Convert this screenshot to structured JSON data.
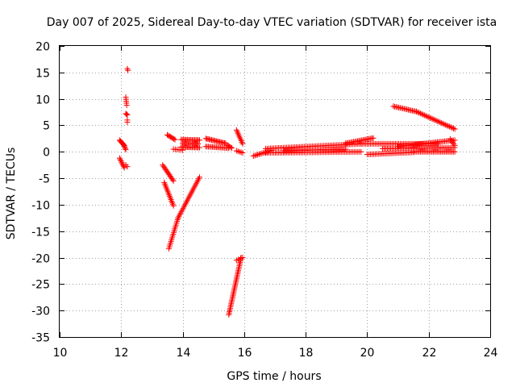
{
  "chart_data": {
    "type": "scatter",
    "title": "Day 007 of 2025, Sidereal Day-to-day VTEC variation (SDTVAR) for receiver ista",
    "xlabel": "GPS time / hours",
    "ylabel": "SDTVAR / TECUs",
    "xlim": [
      10,
      24
    ],
    "ylim": [
      -35,
      20
    ],
    "xticks": [
      10,
      12,
      14,
      16,
      18,
      20,
      22,
      24
    ],
    "yticks": [
      -35,
      -30,
      -25,
      -20,
      -15,
      -10,
      -5,
      0,
      5,
      10,
      15,
      20
    ],
    "grid": true,
    "marker": "+",
    "color": "#ff0000",
    "segments": [
      {
        "name": "a",
        "x0": 11.95,
        "y0": 2.2,
        "x1": 12.1,
        "y1": 1.2,
        "n": 8
      },
      {
        "name": "b",
        "x0": 12.1,
        "y0": 1.1,
        "x1": 12.15,
        "y1": 0.4,
        "n": 4
      },
      {
        "name": "c",
        "x0": 11.95,
        "y0": -1.2,
        "x1": 12.1,
        "y1": -3.0,
        "n": 8
      },
      {
        "name": "d",
        "x0": 12.15,
        "y0": -2.5,
        "x1": 12.2,
        "y1": -2.8,
        "n": 2
      },
      {
        "name": "e",
        "x0": 12.15,
        "y0": 10.3,
        "x1": 12.18,
        "y1": 8.8,
        "n": 5
      },
      {
        "name": "f",
        "x0": 12.15,
        "y0": 7.2,
        "x1": 12.2,
        "y1": 7.0,
        "n": 3
      },
      {
        "name": "g",
        "x0": 12.2,
        "y0": 15.7,
        "x1": 12.22,
        "y1": 15.4,
        "n": 2
      },
      {
        "name": "h",
        "x0": 12.2,
        "y0": 6.0,
        "x1": 12.2,
        "y1": 5.6,
        "n": 2
      },
      {
        "name": "i",
        "x0": 13.35,
        "y0": -2.5,
        "x1": 13.7,
        "y1": -5.5,
        "n": 14
      },
      {
        "name": "j",
        "x0": 13.4,
        "y0": -5.8,
        "x1": 13.7,
        "y1": -10.2,
        "n": 16
      },
      {
        "name": "k",
        "x0": 13.55,
        "y0": -18.3,
        "x1": 13.85,
        "y1": -12.5,
        "n": 18
      },
      {
        "name": "l",
        "x0": 13.85,
        "y0": -12.5,
        "x1": 14.55,
        "y1": -4.8,
        "n": 26
      },
      {
        "name": "m",
        "x0": 13.5,
        "y0": 3.2,
        "x1": 13.75,
        "y1": 2.3,
        "n": 8
      },
      {
        "name": "n",
        "x0": 13.7,
        "y0": 0.5,
        "x1": 14.0,
        "y1": 0.3,
        "n": 6
      },
      {
        "name": "o",
        "x0": 13.95,
        "y0": 2.3,
        "x1": 14.55,
        "y1": 2.2,
        "n": 16
      },
      {
        "name": "p",
        "x0": 13.95,
        "y0": 0.9,
        "x1": 14.55,
        "y1": 0.8,
        "n": 16
      },
      {
        "name": "q",
        "x0": 14.0,
        "y0": 1.6,
        "x1": 14.5,
        "y1": 1.5,
        "n": 12
      },
      {
        "name": "r",
        "x0": 14.75,
        "y0": 2.5,
        "x1": 15.4,
        "y1": 1.6,
        "n": 18
      },
      {
        "name": "s",
        "x0": 14.75,
        "y0": 1.0,
        "x1": 15.5,
        "y1": 0.7,
        "n": 18
      },
      {
        "name": "t",
        "x0": 15.45,
        "y0": 1.3,
        "x1": 15.6,
        "y1": 0.7,
        "n": 5
      },
      {
        "name": "u",
        "x0": 15.5,
        "y0": -30.8,
        "x1": 15.9,
        "y1": -20.0,
        "n": 36
      },
      {
        "name": "v",
        "x0": 15.75,
        "y0": -20.5,
        "x1": 15.95,
        "y1": -20.0,
        "n": 4
      },
      {
        "name": "w",
        "x0": 15.75,
        "y0": 4.1,
        "x1": 15.95,
        "y1": 1.5,
        "n": 10
      },
      {
        "name": "x",
        "x0": 15.75,
        "y0": 0.2,
        "x1": 15.95,
        "y1": -0.2,
        "n": 5
      },
      {
        "name": "y",
        "x0": 16.3,
        "y0": -0.8,
        "x1": 16.9,
        "y1": 0.3,
        "n": 14
      },
      {
        "name": "z",
        "x0": 16.7,
        "y0": 0.6,
        "x1": 19.8,
        "y1": 1.5,
        "n": 60
      },
      {
        "name": "aa",
        "x0": 16.7,
        "y0": -0.2,
        "x1": 19.8,
        "y1": 0.0,
        "n": 60
      },
      {
        "name": "ab",
        "x0": 17.3,
        "y0": 0.2,
        "x1": 19.3,
        "y1": 0.5,
        "n": 40
      },
      {
        "name": "ac",
        "x0": 19.3,
        "y0": 1.6,
        "x1": 20.2,
        "y1": 2.6,
        "n": 22
      },
      {
        "name": "ad",
        "x0": 19.8,
        "y0": 1.5,
        "x1": 22.3,
        "y1": 1.5,
        "n": 50
      },
      {
        "name": "ae",
        "x0": 20.0,
        "y0": -0.5,
        "x1": 21.5,
        "y1": -0.1,
        "n": 30
      },
      {
        "name": "af",
        "x0": 21.5,
        "y0": 0.0,
        "x1": 22.85,
        "y1": 0.0,
        "n": 30
      },
      {
        "name": "ag",
        "x0": 20.5,
        "y0": 0.6,
        "x1": 22.85,
        "y1": 0.8,
        "n": 46
      },
      {
        "name": "ah",
        "x0": 21.0,
        "y0": 1.0,
        "x1": 22.85,
        "y1": 2.2,
        "n": 40
      },
      {
        "name": "ai",
        "x0": 20.85,
        "y0": 8.6,
        "x1": 21.6,
        "y1": 7.6,
        "n": 18
      },
      {
        "name": "aj",
        "x0": 21.6,
        "y0": 7.6,
        "x1": 22.85,
        "y1": 4.3,
        "n": 30
      },
      {
        "name": "ak",
        "x0": 22.7,
        "y0": 2.4,
        "x1": 22.85,
        "y1": 1.2,
        "n": 5
      }
    ]
  }
}
